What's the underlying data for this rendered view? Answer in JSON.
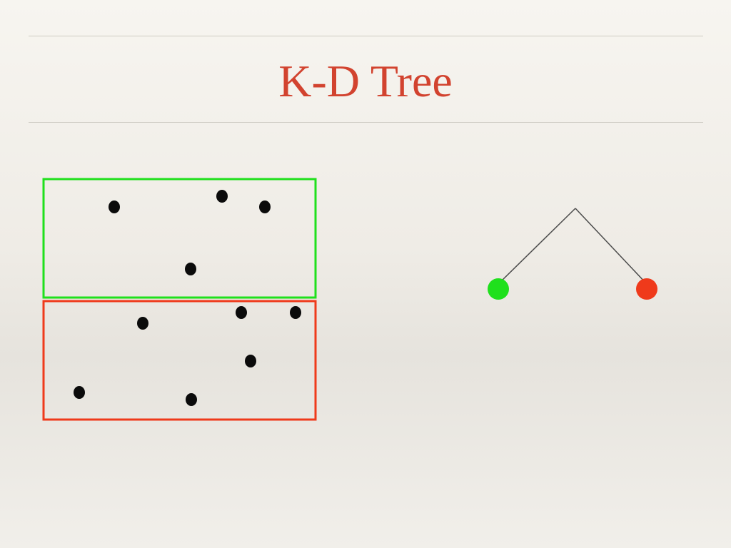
{
  "slide": {
    "title": "K-D Tree"
  },
  "colors": {
    "title": "#d2432f",
    "left_region": "#1fe01c",
    "right_region": "#ef3a1b",
    "point": "#0b0b0b",
    "edge": "#4a4a4a"
  },
  "regions": [
    {
      "name": "green-partition",
      "color": "#1fe01c",
      "points": 4
    },
    {
      "name": "red-partition",
      "color": "#ef3a1b",
      "points": 6
    }
  ],
  "tree": {
    "root": {
      "children": [
        {
          "name": "left-child-node",
          "color": "#1fe01c"
        },
        {
          "name": "right-child-node",
          "color": "#ef3a1b"
        }
      ]
    }
  }
}
